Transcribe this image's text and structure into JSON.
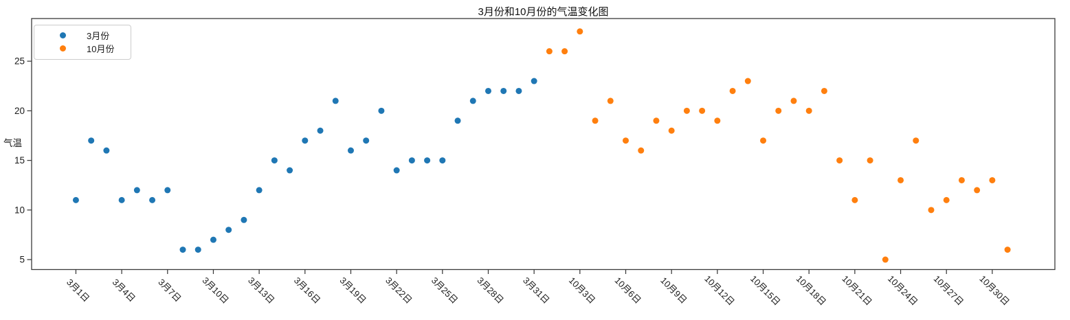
{
  "chart_data": {
    "type": "scatter",
    "title": "3月份和10月份的气温变化图",
    "ylabel": "气温",
    "xlabel": "",
    "grid": false,
    "legend_position": "upper left",
    "marker": "circle",
    "axis_color": "#3a3a3a",
    "xlim": [
      -1.9,
      65.1
    ],
    "ylim": [
      4.0,
      29.3
    ],
    "y_ticks": [
      5,
      10,
      15,
      20,
      25
    ],
    "x_ticks": [
      {
        "u": 1,
        "label": "3月1日"
      },
      {
        "u": 4,
        "label": "3月4日"
      },
      {
        "u": 7,
        "label": "3月7日"
      },
      {
        "u": 10,
        "label": "3月10日"
      },
      {
        "u": 13,
        "label": "3月13日"
      },
      {
        "u": 16,
        "label": "3月16日"
      },
      {
        "u": 19,
        "label": "3月19日"
      },
      {
        "u": 22,
        "label": "3月22日"
      },
      {
        "u": 25,
        "label": "3月25日"
      },
      {
        "u": 28,
        "label": "3月28日"
      },
      {
        "u": 31,
        "label": "3月31日"
      },
      {
        "u": 34,
        "label": "10月3日"
      },
      {
        "u": 37,
        "label": "10月6日"
      },
      {
        "u": 40,
        "label": "10月9日"
      },
      {
        "u": 43,
        "label": "10月12日"
      },
      {
        "u": 46,
        "label": "10月15日"
      },
      {
        "u": 49,
        "label": "10月18日"
      },
      {
        "u": 52,
        "label": "10月21日"
      },
      {
        "u": 55,
        "label": "10月24日"
      },
      {
        "u": 58,
        "label": "10月27日"
      },
      {
        "u": 61,
        "label": "10月30日"
      }
    ],
    "series": [
      {
        "name": "3月份",
        "color": "#1f77b4",
        "x_start_unit": 1,
        "days": [
          1,
          2,
          3,
          4,
          5,
          6,
          7,
          8,
          9,
          10,
          11,
          12,
          13,
          14,
          15,
          16,
          17,
          18,
          19,
          20,
          21,
          22,
          23,
          24,
          25,
          26,
          27,
          28,
          29,
          30,
          31
        ],
        "values": [
          11,
          17,
          16,
          11,
          12,
          11,
          12,
          6,
          6,
          7,
          8,
          9,
          12,
          15,
          14,
          17,
          18,
          21,
          16,
          17,
          20,
          14,
          15,
          15,
          15,
          19,
          21,
          22,
          22,
          22,
          23
        ]
      },
      {
        "name": "10月份",
        "color": "#ff7f0e",
        "x_start_unit": 32,
        "days": [
          1,
          2,
          3,
          4,
          5,
          6,
          7,
          8,
          9,
          10,
          11,
          12,
          13,
          14,
          15,
          16,
          17,
          18,
          19,
          20,
          21,
          22,
          23,
          24,
          25,
          26,
          27,
          28,
          29,
          30,
          31
        ],
        "values": [
          26,
          26,
          28,
          19,
          21,
          17,
          16,
          19,
          18,
          20,
          20,
          19,
          22,
          23,
          17,
          20,
          21,
          20,
          22,
          15,
          11,
          15,
          5,
          13,
          17,
          10,
          11,
          13,
          12,
          13,
          6
        ]
      }
    ]
  }
}
